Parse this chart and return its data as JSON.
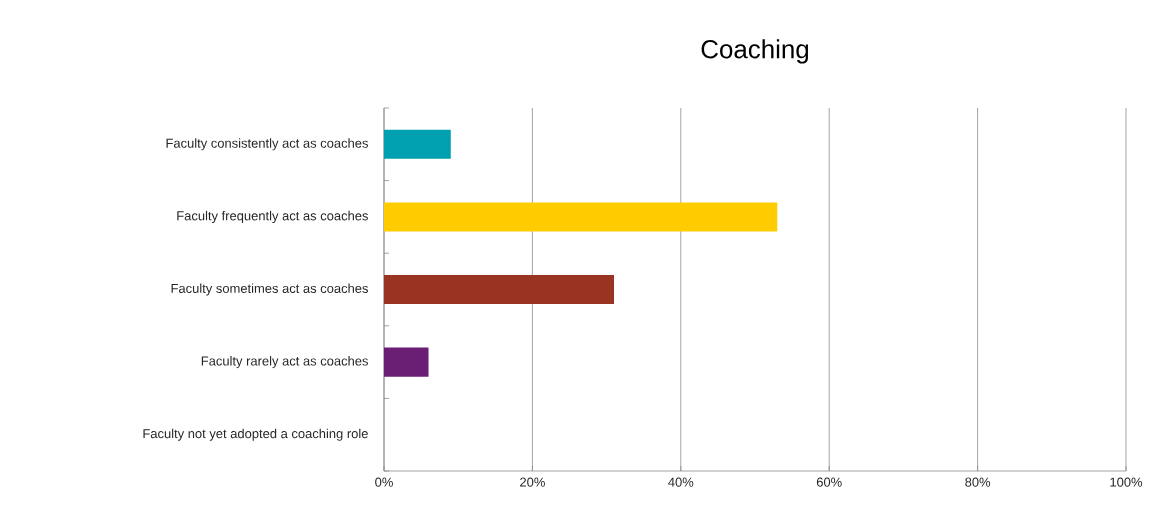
{
  "chart_data": {
    "type": "bar",
    "orientation": "horizontal",
    "title": "Coaching",
    "categories": [
      "Faculty consistently act as coaches",
      "Faculty frequently act as coaches",
      "Faculty sometimes act as coaches",
      "Faculty rarely act as coaches",
      "Faculty not yet adopted a coaching role"
    ],
    "values": [
      9,
      53,
      31,
      6,
      0
    ],
    "colors": [
      "#00a0b0",
      "#ffcc00",
      "#993322",
      "#6a1f75",
      null
    ],
    "xlim": [
      0,
      100
    ],
    "xticks": [
      {
        "value": 0,
        "label": "0%"
      },
      {
        "value": 20,
        "label": "20%"
      },
      {
        "value": 40,
        "label": "40%"
      },
      {
        "value": 60,
        "label": "60%"
      },
      {
        "value": 80,
        "label": "80%"
      },
      {
        "value": 100,
        "label": "100%"
      }
    ],
    "grid": "x"
  }
}
